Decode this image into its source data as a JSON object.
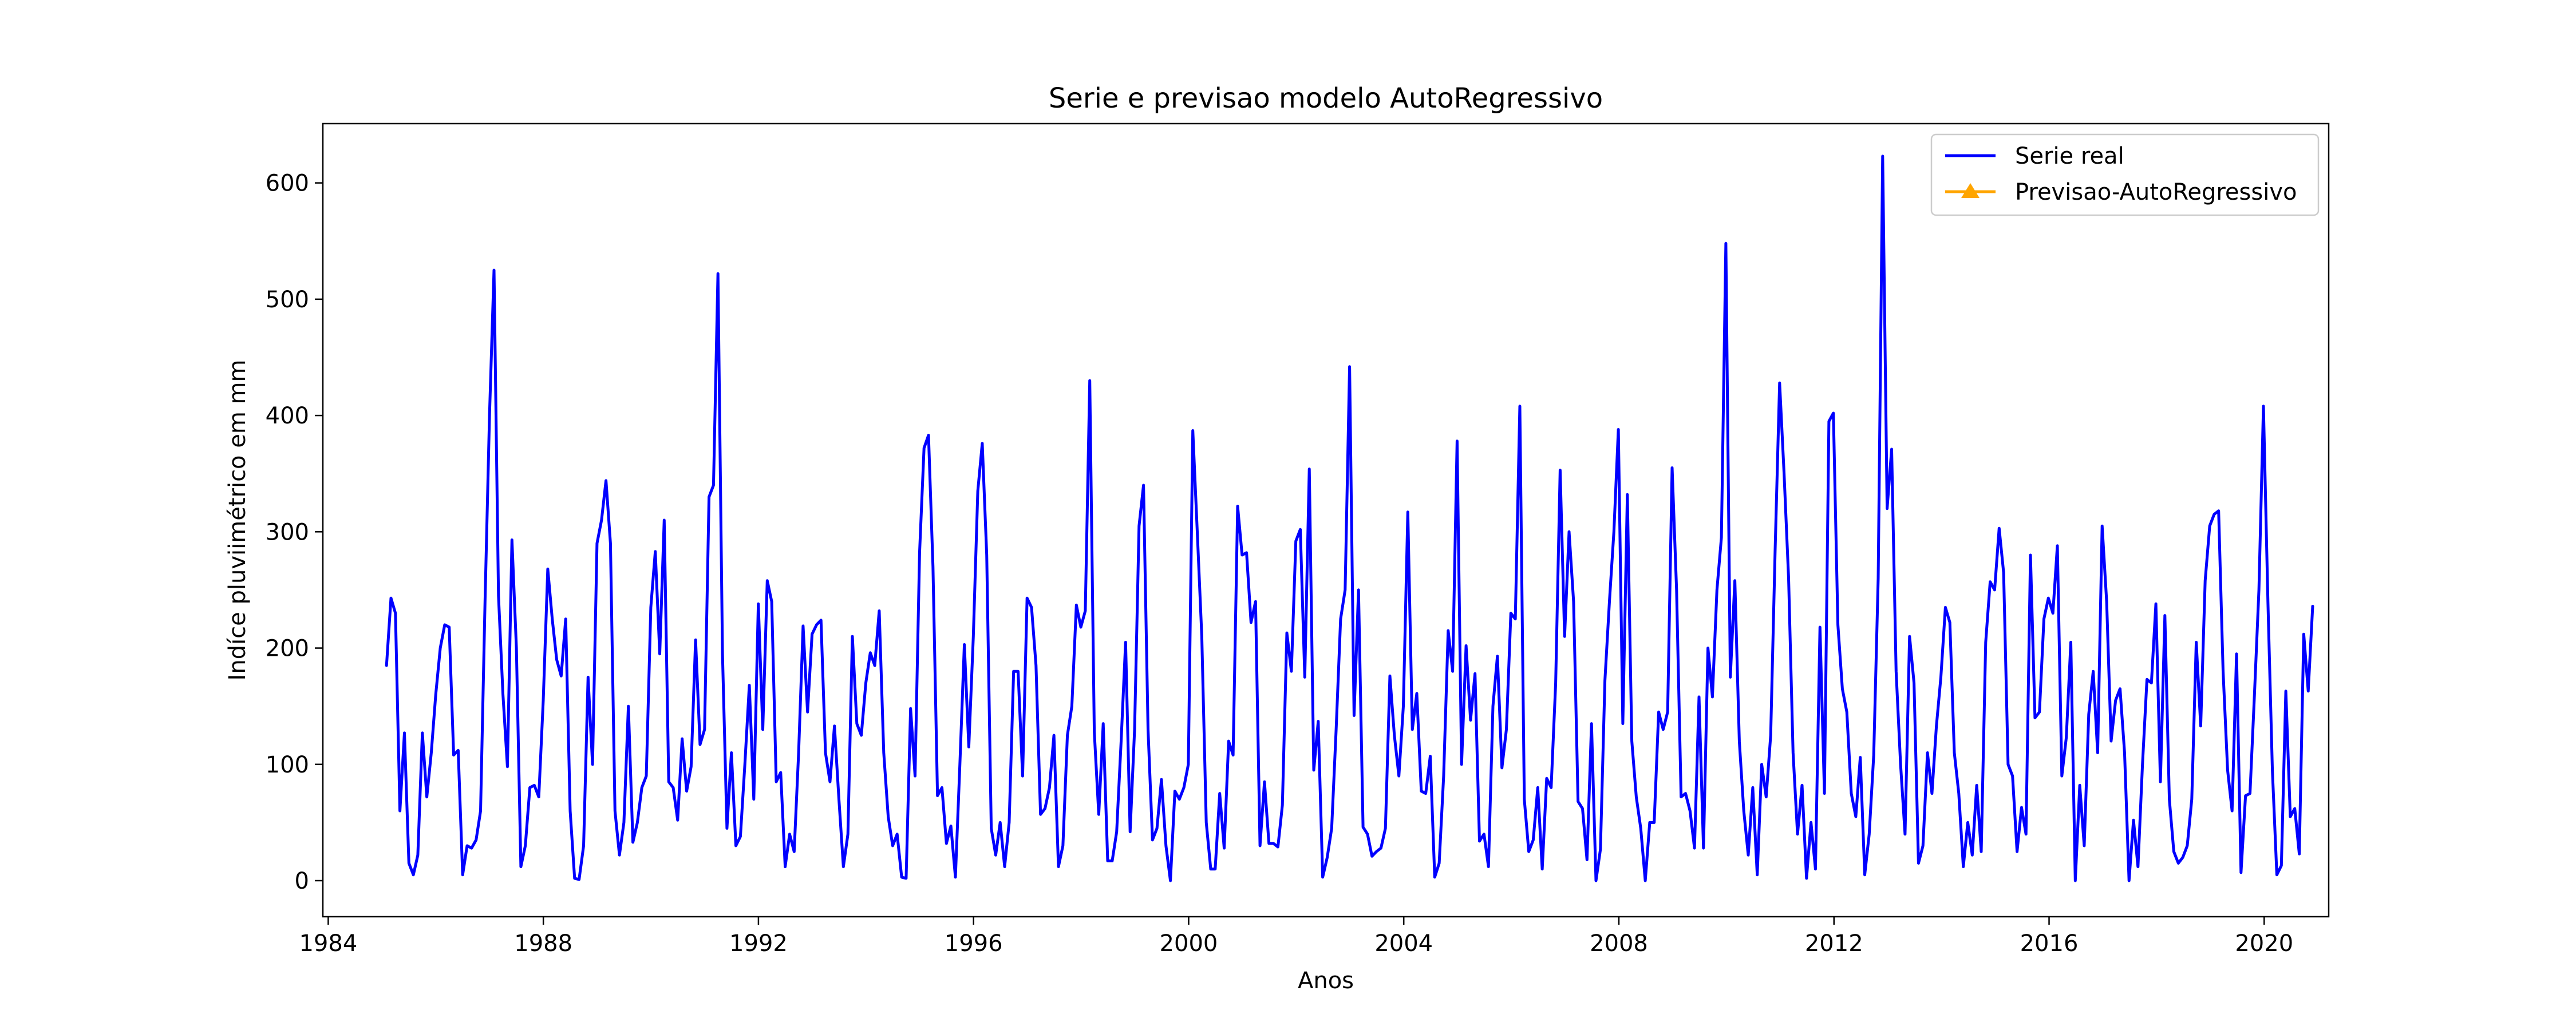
{
  "chart_data": {
    "type": "line",
    "title": "Serie e previsao modelo AutoRegressivo",
    "xlabel": "Anos",
    "ylabel": "Indíce pluviimétrico em mm",
    "xlim": [
      1983.9,
      2021.2
    ],
    "ylim": [
      -31,
      651
    ],
    "x_ticks": [
      1984,
      1988,
      1992,
      1996,
      2000,
      2004,
      2008,
      2012,
      2016,
      2020
    ],
    "y_ticks": [
      0,
      100,
      200,
      300,
      400,
      500,
      600
    ],
    "legend_position": "top-right",
    "grid": false,
    "series": [
      {
        "name": "Serie real",
        "color": "#0000ff",
        "marker": "none",
        "x_start": 1985.0833,
        "x_step": 0.0833,
        "values": [
          185,
          243,
          230,
          60,
          127,
          15,
          5,
          22,
          127,
          72,
          110,
          160,
          200,
          220,
          218,
          108,
          112,
          5,
          30,
          28,
          35,
          60,
          240,
          400,
          525,
          245,
          160,
          98,
          293,
          200,
          12,
          30,
          80,
          82,
          72,
          155,
          268,
          225,
          190,
          176,
          225,
          60,
          2,
          1,
          30,
          175,
          100,
          290,
          310,
          344,
          290,
          60,
          22,
          50,
          150,
          33,
          50,
          80,
          90,
          235,
          283,
          195,
          310,
          85,
          80,
          52,
          122,
          77,
          98,
          207,
          117,
          130,
          330,
          340,
          522,
          195,
          45,
          110,
          30,
          38,
          100,
          168,
          70,
          238,
          130,
          258,
          240,
          85,
          93,
          12,
          40,
          25,
          110,
          219,
          145,
          212,
          220,
          224,
          110,
          85,
          133,
          70,
          12,
          40,
          210,
          135,
          125,
          170,
          196,
          185,
          232,
          110,
          55,
          30,
          40,
          3,
          2,
          148,
          90,
          282,
          372,
          383,
          270,
          73,
          80,
          32,
          47,
          3,
          100,
          203,
          115,
          210,
          335,
          376,
          280,
          45,
          22,
          50,
          12,
          50,
          180,
          180,
          90,
          243,
          235,
          185,
          57,
          62,
          80,
          125,
          12,
          30,
          125,
          150,
          237,
          218,
          232,
          430,
          128,
          57,
          135,
          17,
          17,
          42,
          120,
          205,
          42,
          130,
          305,
          340,
          130,
          35,
          45,
          87,
          30,
          0,
          77,
          70,
          80,
          100,
          387,
          300,
          210,
          50,
          10,
          10,
          75,
          28,
          120,
          108,
          322,
          280,
          282,
          222,
          240,
          30,
          85,
          32,
          32,
          29,
          65,
          213,
          180,
          292,
          302,
          175,
          354,
          95,
          137,
          3,
          20,
          45,
          130,
          225,
          250,
          442,
          142,
          250,
          46,
          40,
          21,
          25,
          28,
          45,
          176,
          125,
          90,
          150,
          317,
          130,
          161,
          77,
          75,
          107,
          3,
          15,
          90,
          215,
          180,
          378,
          100,
          202,
          138,
          178,
          34,
          40,
          12,
          150,
          193,
          97,
          130,
          230,
          225,
          408,
          70,
          25,
          35,
          80,
          10,
          88,
          80,
          170,
          353,
          210,
          300,
          240,
          68,
          62,
          18,
          135,
          0,
          27,
          172,
          240,
          300,
          388,
          135,
          332,
          120,
          72,
          45,
          0,
          50,
          50,
          145,
          130,
          145,
          355,
          250,
          72,
          75,
          60,
          28,
          158,
          28,
          200,
          158,
          250,
          295,
          548,
          175,
          258,
          120,
          60,
          22,
          80,
          5,
          100,
          72,
          125,
          285,
          428,
          350,
          260,
          110,
          40,
          82,
          2,
          50,
          10,
          218,
          75,
          395,
          402,
          220,
          165,
          145,
          75,
          55,
          106,
          5,
          40,
          108,
          260,
          623,
          320,
          371,
          180,
          100,
          40,
          210,
          170,
          15,
          30,
          110,
          75,
          133,
          175,
          235,
          222,
          110,
          75,
          12,
          50,
          22,
          82,
          25,
          205,
          257,
          250,
          303,
          265,
          100,
          90,
          25,
          63,
          40,
          280,
          140,
          145,
          225,
          243,
          230,
          288,
          90,
          123,
          205,
          0,
          82,
          30,
          143,
          180,
          110,
          305,
          240,
          120,
          155,
          165,
          110,
          0,
          52,
          12,
          100,
          173,
          170,
          238,
          85,
          228,
          70,
          25,
          15,
          20,
          30,
          70,
          205,
          133,
          258,
          305,
          315,
          318,
          180,
          95,
          60,
          195,
          7,
          73,
          75,
          160,
          250,
          408,
          240,
          95,
          5,
          13,
          163,
          55,
          62,
          23,
          212,
          163,
          236
        ]
      },
      {
        "name": "Previsao-AutoRegressivo",
        "color": "#ffa500",
        "marker": "triangle",
        "values": []
      }
    ]
  }
}
